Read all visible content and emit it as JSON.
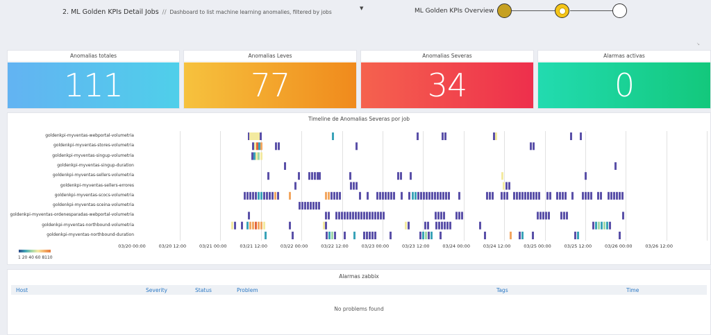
{
  "header": {
    "dashboard_title": "2. ML Golden KPIs Detail Jobs",
    "separator": "//",
    "dashboard_description": "Dashboard to list machine learning anomalies, filtered by jobs",
    "overview_label": "ML Golden KPIs Overview",
    "steps": [
      "done",
      "current",
      "todo"
    ]
  },
  "stats": [
    {
      "label": "Anomalias totales",
      "value": "111",
      "gradient": [
        "#63b3f2",
        "#4fcfea"
      ]
    },
    {
      "label": "Anomalias Leves",
      "value": "77",
      "gradient": [
        "#f6c23e",
        "#f08a1c"
      ]
    },
    {
      "label": "Anomalias Severas",
      "value": "34",
      "gradient": [
        "#f5624e",
        "#ee2f4c"
      ]
    },
    {
      "label": "Alarmas activas",
      "value": "0",
      "gradient": [
        "#22dbb0",
        "#13c87c"
      ]
    }
  ],
  "timeline": {
    "title": "Timeline de Anomalias Severas por job",
    "legend": "1  20  40  60  8110",
    "rows": [
      "goldenkpi-myventas-webportal-volumetria",
      "goldenkpi-myventas-stores-volumetria",
      "goldenkpi-myventas-singup-volumetria",
      "goldenkpi-myventas-singup-duration",
      "goldenkpi-myventas-sellers-volumetria",
      "goldenkpi-myventas-sellers-errores",
      "goldenkpi-myventas-scocs-volumetria",
      "goldenkpi-myventas-sceina-volumetria",
      "goldenkpi-myventas-ordenesparadas-webportal-volumetria",
      "goldenkpi-myventas-northbound-volumetria",
      "goldenkpi-myventas-northbound-duration"
    ],
    "ticks": [
      "03/20 00:00",
      "03/20 12:00",
      "03/21 00:00",
      "03/21 12:00",
      "03/22 00:00",
      "03/22 12:00",
      "03/23 00:00",
      "03/23 12:00",
      "03/24 00:00",
      "03/24 12:00",
      "03/25 00:00",
      "03/25 12:00",
      "03/26 00:00",
      "03/26 12:00"
    ],
    "colors": {
      "dark": "#5a50a8",
      "teal": "#3aa3b8",
      "mint": "#9fd7a7",
      "yellow": "#f3eaa0",
      "orange": "#f2a660",
      "red": "#e2653c"
    },
    "marks": [
      [
        [
          356,
          "d"
        ],
        [
          358,
          "y"
        ],
        [
          361,
          "y"
        ],
        [
          364,
          "y"
        ],
        [
          367,
          "y"
        ],
        [
          370,
          "y"
        ],
        [
          373,
          "d"
        ],
        [
          477,
          "t"
        ],
        [
          599,
          "d"
        ],
        [
          635,
          "d"
        ],
        [
          639,
          "d"
        ],
        [
          709,
          "d"
        ],
        [
          712,
          "y"
        ],
        [
          820,
          "d"
        ],
        [
          834,
          "d"
        ]
      ],
      [
        [
          362,
          "d"
        ],
        [
          365,
          "y"
        ],
        [
          368,
          "r"
        ],
        [
          371,
          "t"
        ],
        [
          374,
          "o"
        ],
        [
          395,
          "d"
        ],
        [
          399,
          "d"
        ],
        [
          511,
          "d"
        ],
        [
          762,
          "d"
        ],
        [
          766,
          "d"
        ]
      ],
      [
        [
          361,
          "d"
        ],
        [
          364,
          "t"
        ],
        [
          367,
          "y"
        ],
        [
          370,
          "m"
        ],
        [
          374,
          "y"
        ]
      ],
      [
        [
          408,
          "d"
        ],
        [
          884,
          "d"
        ]
      ],
      [
        [
          384,
          "d"
        ],
        [
          428,
          "d"
        ],
        [
          443,
          "d"
        ],
        [
          447,
          "d"
        ],
        [
          451,
          "d"
        ],
        [
          455,
          "d"
        ],
        [
          458,
          "d"
        ],
        [
          502,
          "d"
        ],
        [
          571,
          "d"
        ],
        [
          575,
          "d"
        ],
        [
          589,
          "d"
        ],
        [
          721,
          "y"
        ],
        [
          841,
          "d"
        ]
      ],
      [
        [
          423,
          "d"
        ],
        [
          503,
          "d"
        ],
        [
          507,
          "d"
        ],
        [
          511,
          "d"
        ],
        [
          723,
          "y"
        ],
        [
          727,
          "d"
        ],
        [
          731,
          "d"
        ]
      ],
      [
        [
          350,
          "d"
        ],
        [
          354,
          "d"
        ],
        [
          358,
          "d"
        ],
        [
          362,
          "d"
        ],
        [
          366,
          "d"
        ],
        [
          370,
          "t"
        ],
        [
          374,
          "t"
        ],
        [
          378,
          "d"
        ],
        [
          382,
          "d"
        ],
        [
          386,
          "d"
        ],
        [
          390,
          "d"
        ],
        [
          394,
          "o"
        ],
        [
          398,
          "d"
        ],
        [
          415,
          "o"
        ],
        [
          467,
          "o"
        ],
        [
          471,
          "o"
        ],
        [
          475,
          "d"
        ],
        [
          479,
          "d"
        ],
        [
          483,
          "d"
        ],
        [
          487,
          "d"
        ],
        [
          516,
          "d"
        ],
        [
          527,
          "d"
        ],
        [
          541,
          "d"
        ],
        [
          545,
          "d"
        ],
        [
          549,
          "d"
        ],
        [
          553,
          "d"
        ],
        [
          557,
          "d"
        ],
        [
          561,
          "d"
        ],
        [
          565,
          "d"
        ],
        [
          576,
          "d"
        ],
        [
          587,
          "d"
        ],
        [
          592,
          "t"
        ],
        [
          596,
          "t"
        ],
        [
          600,
          "d"
        ],
        [
          604,
          "d"
        ],
        [
          608,
          "d"
        ],
        [
          612,
          "d"
        ],
        [
          616,
          "d"
        ],
        [
          620,
          "d"
        ],
        [
          624,
          "d"
        ],
        [
          628,
          "d"
        ],
        [
          632,
          "d"
        ],
        [
          636,
          "d"
        ],
        [
          640,
          "d"
        ],
        [
          644,
          "d"
        ],
        [
          659,
          "d"
        ],
        [
          699,
          "d"
        ],
        [
          703,
          "d"
        ],
        [
          707,
          "d"
        ],
        [
          720,
          "d"
        ],
        [
          724,
          "d"
        ],
        [
          728,
          "d"
        ],
        [
          738,
          "d"
        ],
        [
          742,
          "d"
        ],
        [
          746,
          "d"
        ],
        [
          750,
          "d"
        ],
        [
          754,
          "d"
        ],
        [
          758,
          "d"
        ],
        [
          762,
          "d"
        ],
        [
          766,
          "d"
        ],
        [
          770,
          "d"
        ],
        [
          774,
          "d"
        ],
        [
          786,
          "d"
        ],
        [
          790,
          "d"
        ],
        [
          800,
          "d"
        ],
        [
          804,
          "d"
        ],
        [
          808,
          "d"
        ],
        [
          812,
          "d"
        ],
        [
          822,
          "d"
        ],
        [
          837,
          "d"
        ],
        [
          841,
          "d"
        ],
        [
          845,
          "d"
        ],
        [
          849,
          "d"
        ],
        [
          859,
          "d"
        ],
        [
          863,
          "d"
        ],
        [
          874,
          "d"
        ],
        [
          878,
          "d"
        ],
        [
          882,
          "d"
        ],
        [
          886,
          "d"
        ],
        [
          890,
          "d"
        ],
        [
          894,
          "d"
        ]
      ],
      [
        [
          429,
          "d"
        ],
        [
          433,
          "d"
        ],
        [
          437,
          "d"
        ],
        [
          441,
          "d"
        ],
        [
          445,
          "d"
        ],
        [
          449,
          "d"
        ],
        [
          453,
          "d"
        ],
        [
          457,
          "d"
        ]
      ],
      [
        [
          356,
          "d"
        ],
        [
          467,
          "d"
        ],
        [
          471,
          "d"
        ],
        [
          482,
          "d"
        ],
        [
          486,
          "d"
        ],
        [
          490,
          "d"
        ],
        [
          494,
          "d"
        ],
        [
          498,
          "d"
        ],
        [
          502,
          "d"
        ],
        [
          506,
          "d"
        ],
        [
          510,
          "d"
        ],
        [
          514,
          "d"
        ],
        [
          518,
          "d"
        ],
        [
          522,
          "d"
        ],
        [
          526,
          "d"
        ],
        [
          530,
          "d"
        ],
        [
          534,
          "d"
        ],
        [
          538,
          "d"
        ],
        [
          542,
          "d"
        ],
        [
          546,
          "d"
        ],
        [
          550,
          "d"
        ],
        [
          625,
          "d"
        ],
        [
          629,
          "d"
        ],
        [
          633,
          "d"
        ],
        [
          637,
          "d"
        ],
        [
          655,
          "d"
        ],
        [
          659,
          "d"
        ],
        [
          663,
          "d"
        ],
        [
          772,
          "d"
        ],
        [
          776,
          "d"
        ],
        [
          780,
          "d"
        ],
        [
          784,
          "d"
        ],
        [
          788,
          "d"
        ],
        [
          806,
          "d"
        ],
        [
          810,
          "d"
        ],
        [
          814,
          "d"
        ],
        [
          895,
          "d"
        ]
      ],
      [
        [
          332,
          "y"
        ],
        [
          336,
          "d"
        ],
        [
          346,
          "d"
        ],
        [
          354,
          "t"
        ],
        [
          358,
          "o"
        ],
        [
          362,
          "o"
        ],
        [
          366,
          "r"
        ],
        [
          370,
          "o"
        ],
        [
          374,
          "o"
        ],
        [
          378,
          "y"
        ],
        [
          415,
          "d"
        ],
        [
          464,
          "y"
        ],
        [
          467,
          "d"
        ],
        [
          582,
          "y"
        ],
        [
          586,
          "d"
        ],
        [
          610,
          "d"
        ],
        [
          614,
          "d"
        ],
        [
          626,
          "d"
        ],
        [
          630,
          "d"
        ],
        [
          634,
          "d"
        ],
        [
          638,
          "d"
        ],
        [
          642,
          "d"
        ],
        [
          646,
          "d"
        ],
        [
          689,
          "d"
        ],
        [
          852,
          "d"
        ],
        [
          856,
          "t"
        ],
        [
          860,
          "m"
        ],
        [
          864,
          "t"
        ],
        [
          868,
          "m"
        ],
        [
          872,
          "t"
        ],
        [
          876,
          "d"
        ]
      ],
      [
        [
          380,
          "t"
        ],
        [
          419,
          "d"
        ],
        [
          468,
          "d"
        ],
        [
          472,
          "t"
        ],
        [
          476,
          "m"
        ],
        [
          480,
          "d"
        ],
        [
          494,
          "d"
        ],
        [
          508,
          "t"
        ],
        [
          522,
          "d"
        ],
        [
          526,
          "d"
        ],
        [
          530,
          "d"
        ],
        [
          534,
          "d"
        ],
        [
          538,
          "d"
        ],
        [
          560,
          "d"
        ],
        [
          603,
          "d"
        ],
        [
          607,
          "t"
        ],
        [
          611,
          "m"
        ],
        [
          615,
          "d"
        ],
        [
          619,
          "t"
        ],
        [
          632,
          "d"
        ],
        [
          696,
          "d"
        ],
        [
          733,
          "o"
        ],
        [
          746,
          "d"
        ],
        [
          750,
          "t"
        ],
        [
          765,
          "d"
        ],
        [
          826,
          "d"
        ],
        [
          830,
          "t"
        ],
        [
          890,
          "d"
        ]
      ]
    ]
  },
  "alarms": {
    "title": "Alarmas zabbix",
    "columns": [
      "Host",
      "Severity",
      "Status",
      "Problem",
      "Tags",
      "Time"
    ],
    "empty_message": "No problems found"
  }
}
